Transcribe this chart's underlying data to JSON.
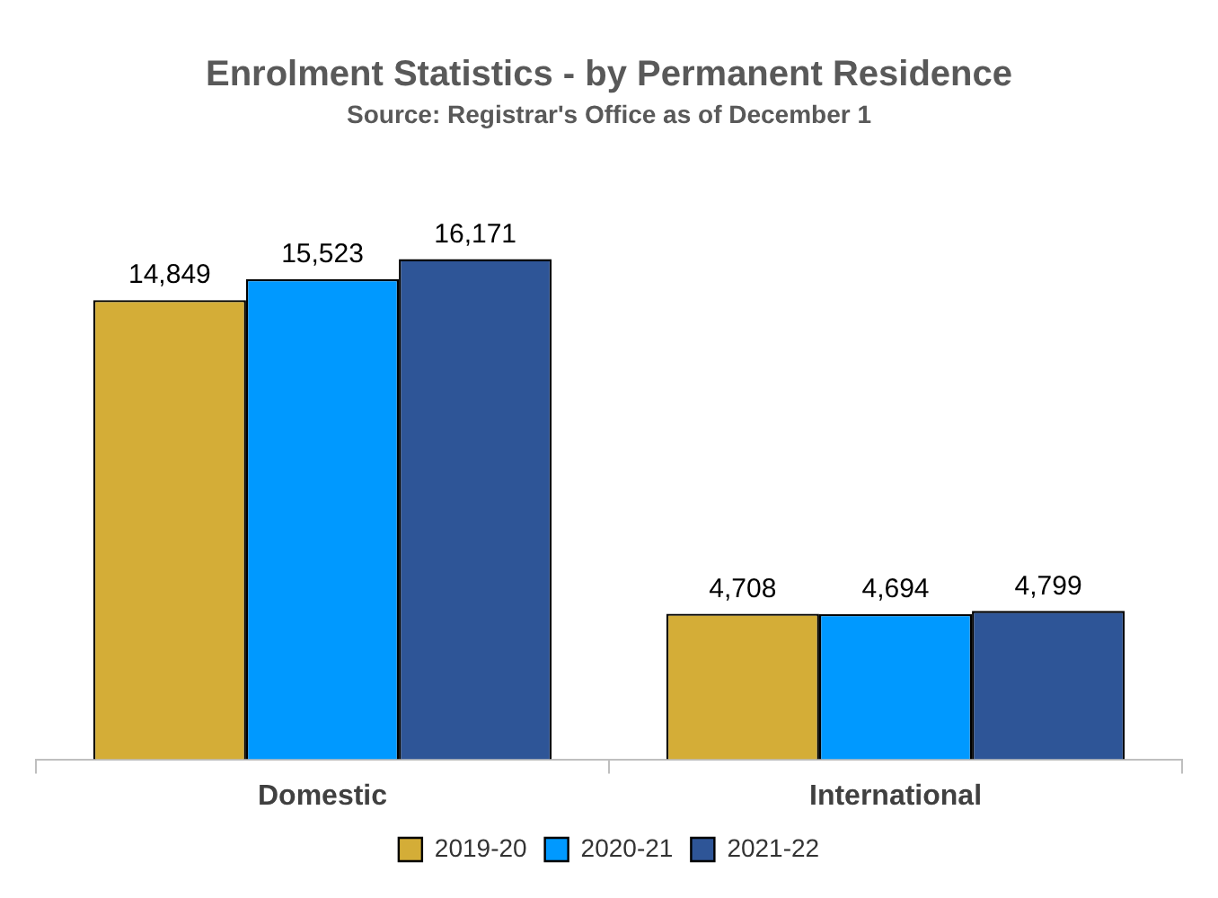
{
  "chart_data": {
    "type": "bar",
    "title": "Enrolment Statistics - by Permanent Residence",
    "subtitle": "Source: Registrar's Office as of December 1",
    "categories": [
      "Domestic",
      "International"
    ],
    "series": [
      {
        "name": "2019-20",
        "color": "#d4ad37",
        "values": [
          14849,
          4708
        ],
        "value_labels": [
          "14,849",
          "4,708"
        ]
      },
      {
        "name": "2020-21",
        "color": "#0099ff",
        "values": [
          15523,
          4694
        ],
        "value_labels": [
          "15,523",
          "4,694"
        ]
      },
      {
        "name": "2021-22",
        "color": "#2e5597",
        "values": [
          16171,
          4799
        ],
        "value_labels": [
          "16,171",
          "4,799"
        ]
      }
    ],
    "legend": "bottom",
    "tick_labels": "x",
    "grid": false
  }
}
